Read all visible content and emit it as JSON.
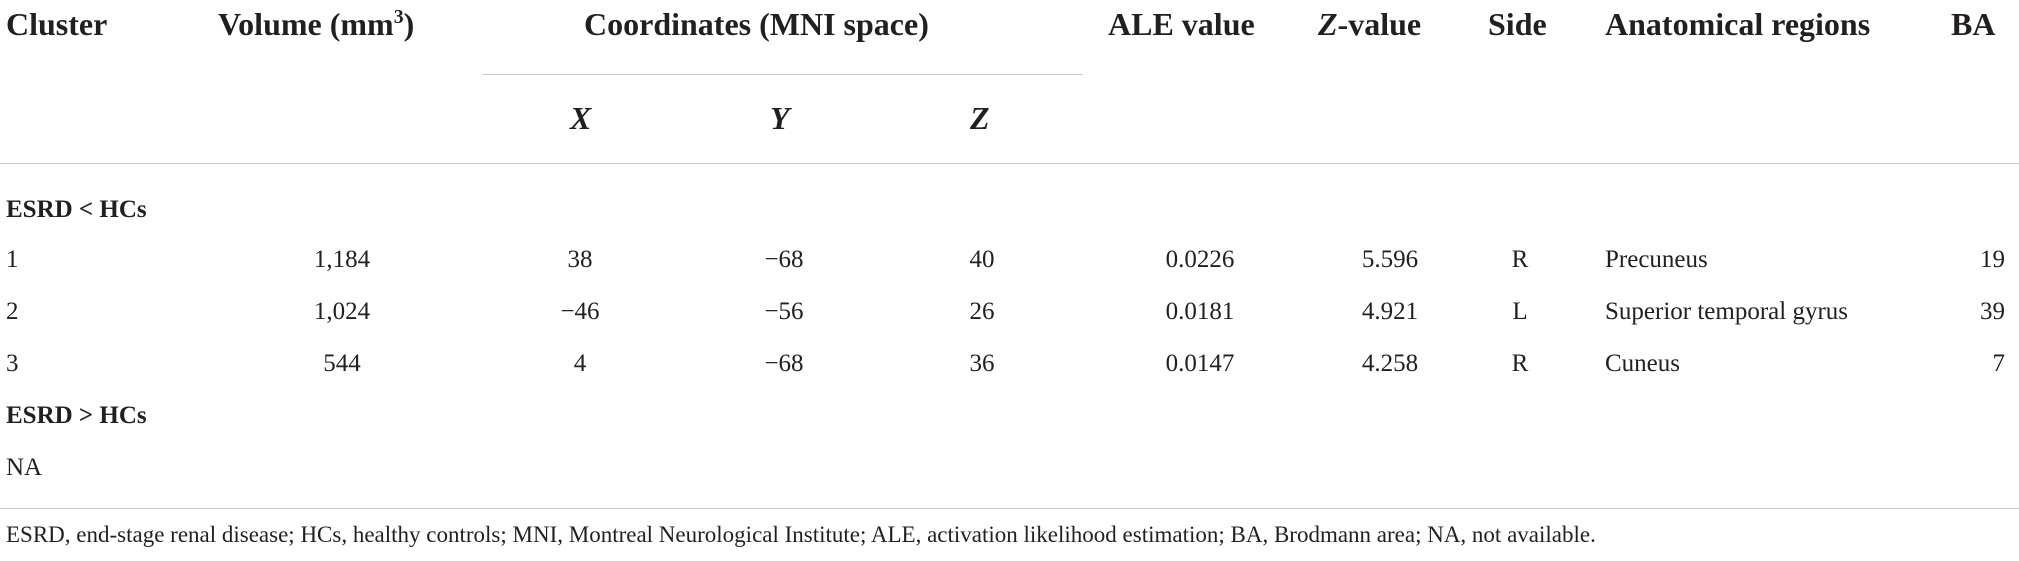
{
  "headers": {
    "cluster": "Cluster",
    "volume": "Volume (mm",
    "volume_sup": "3",
    "volume_close": ")",
    "coords": "Coordinates (MNI space)",
    "x": "X",
    "y": "Y",
    "z": "Z",
    "ale": "ALE value",
    "zvalue_italic": "Z",
    "zvalue_rest": "-value",
    "side": "Side",
    "regions": "Anatomical regions",
    "ba": "BA"
  },
  "groups": [
    {
      "label": "ESRD < HCs",
      "rows": [
        {
          "cluster": "1",
          "volume": "1,184",
          "x": "38",
          "y": "−68",
          "z": "40",
          "ale": "0.0226",
          "zval": "5.596",
          "side": "R",
          "region": "Precuneus",
          "ba": "19"
        },
        {
          "cluster": "2",
          "volume": "1,024",
          "x": "−46",
          "y": "−56",
          "z": "26",
          "ale": "0.0181",
          "zval": "4.921",
          "side": "L",
          "region": "Superior temporal gyrus",
          "ba": "39"
        },
        {
          "cluster": "3",
          "volume": "544",
          "x": "4",
          "y": "−68",
          "z": "36",
          "ale": "0.0147",
          "zval": "4.258",
          "side": "R",
          "region": "Cuneus",
          "ba": "7"
        }
      ]
    },
    {
      "label": "ESRD > HCs",
      "note": "NA"
    }
  ],
  "footnote": "ESRD, end-stage renal disease; HCs, healthy controls; MNI, Montreal Neurological Institute; ALE, activation likelihood estimation; BA, Brodmann area; NA, not available."
}
